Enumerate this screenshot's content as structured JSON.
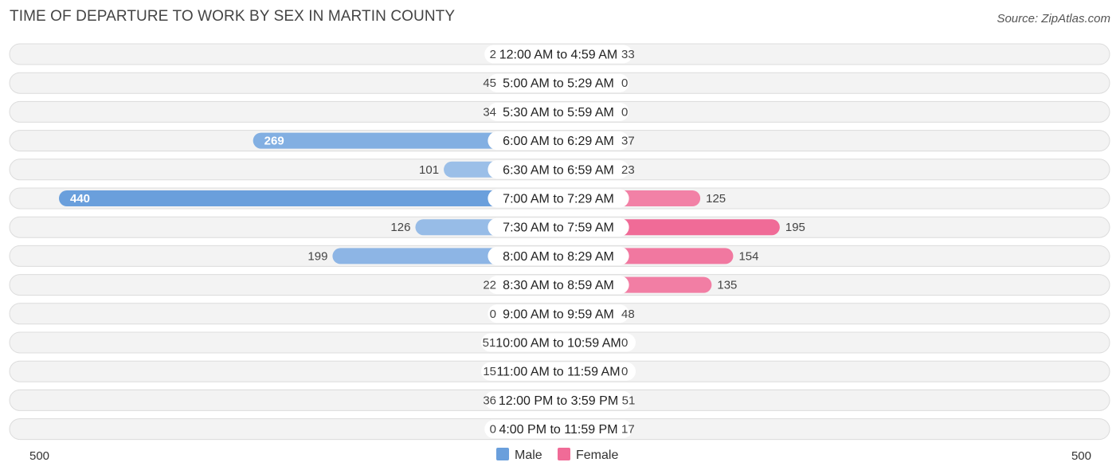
{
  "title": "TIME OF DEPARTURE TO WORK BY SEX IN MARTIN COUNTY",
  "source": "Source: ZipAtlas.com",
  "chart_data": {
    "type": "bar",
    "orientation": "horizontal-diverging",
    "categories": [
      "12:00 AM to 4:59 AM",
      "5:00 AM to 5:29 AM",
      "5:30 AM to 5:59 AM",
      "6:00 AM to 6:29 AM",
      "6:30 AM to 6:59 AM",
      "7:00 AM to 7:29 AM",
      "7:30 AM to 7:59 AM",
      "8:00 AM to 8:29 AM",
      "8:30 AM to 8:59 AM",
      "9:00 AM to 9:59 AM",
      "10:00 AM to 10:59 AM",
      "11:00 AM to 11:59 AM",
      "12:00 PM to 3:59 PM",
      "4:00 PM to 11:59 PM"
    ],
    "series": [
      {
        "name": "Male",
        "values": [
          2,
          45,
          34,
          269,
          101,
          440,
          126,
          199,
          22,
          0,
          51,
          15,
          36,
          0
        ],
        "color": "#6a9fdc"
      },
      {
        "name": "Female",
        "values": [
          33,
          0,
          0,
          37,
          23,
          125,
          195,
          154,
          135,
          48,
          0,
          0,
          51,
          17
        ],
        "color": "#f06b97"
      }
    ],
    "xlim": [
      -500,
      500
    ],
    "axis_labels": {
      "left": "500",
      "right": "500"
    },
    "legend_position": "bottom-center"
  }
}
